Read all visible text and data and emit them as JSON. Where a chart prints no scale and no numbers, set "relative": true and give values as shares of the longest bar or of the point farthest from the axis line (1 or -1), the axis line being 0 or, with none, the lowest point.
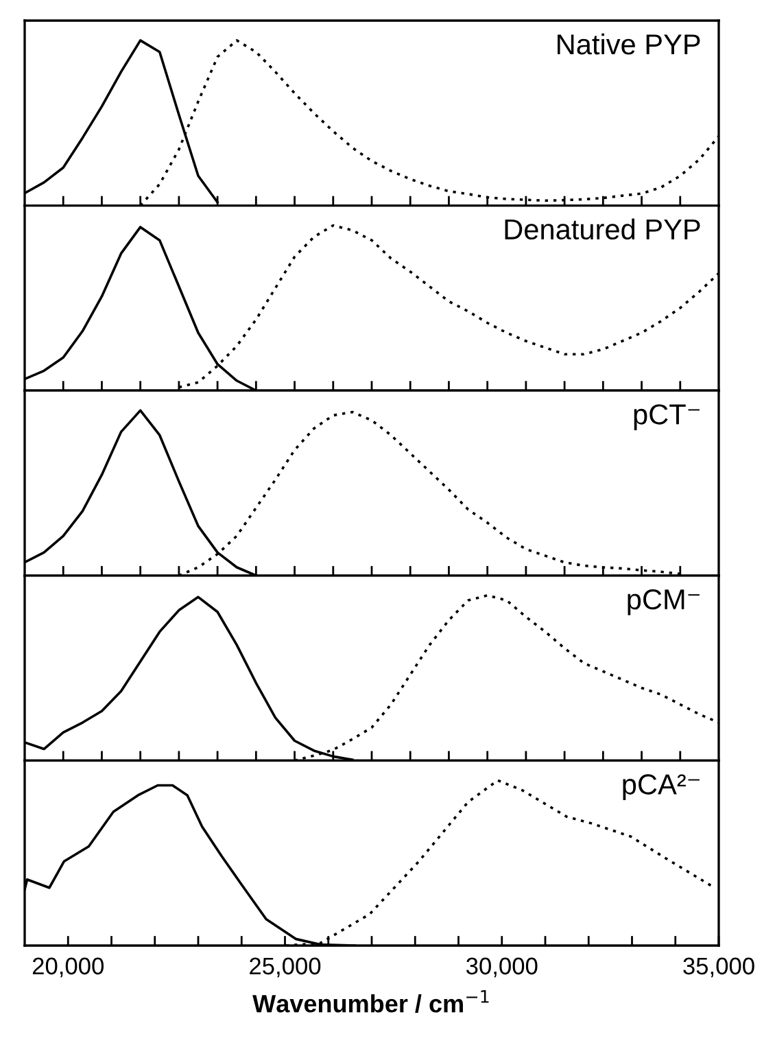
{
  "chart_data": [
    {
      "type": "line",
      "relative": true,
      "categories": [
        null,
        null,
        null,
        null,
        null,
        null,
        null,
        null,
        null,
        null,
        null,
        null,
        null,
        null,
        null,
        null,
        null,
        null,
        null,
        null,
        null,
        null,
        null,
        null,
        null,
        null,
        null,
        null,
        null,
        null,
        null,
        null,
        null,
        null,
        null,
        null,
        null
      ],
      "tick_labels": false,
      "grid": false,
      "annotations": [
        "Native PYP"
      ],
      "series": [
        {
          "color": "#000000",
          "line_style": "solid",
          "values": [
            0.075,
            0.14,
            0.23,
            0.41,
            0.6,
            0.81,
            1.0,
            0.93,
            0.55,
            0.18,
            0.02,
            null,
            null,
            null,
            null,
            null,
            null,
            null,
            null,
            null,
            null,
            null,
            null,
            null,
            null,
            null,
            null,
            null,
            null,
            null,
            null,
            null,
            null,
            null,
            null,
            null,
            null
          ]
        },
        {
          "color": "#000000",
          "line_style": "dotted",
          "values": [
            null,
            null,
            null,
            null,
            null,
            null,
            0,
            0.13,
            0.34,
            0.63,
            0.9,
            1.0,
            0.93,
            0.81,
            0.68,
            0.56,
            0.45,
            0.35,
            0.27,
            0.21,
            0.16,
            0.12,
            0.087,
            0.07,
            0.05,
            0.04,
            0.035,
            0.03,
            0.033,
            0.038,
            0.046,
            0.06,
            0.073,
            0.11,
            0.18,
            0.28,
            0.42
          ]
        }
      ]
    },
    {
      "type": "line",
      "relative": true,
      "categories": [
        null,
        null,
        null,
        null,
        null,
        null,
        null,
        null,
        null,
        null,
        null,
        null,
        null,
        null,
        null,
        null,
        null,
        null,
        null,
        null,
        null,
        null,
        null,
        null,
        null,
        null,
        null,
        null,
        null,
        null,
        null,
        null,
        null,
        null,
        null,
        null,
        null
      ],
      "tick_labels": false,
      "grid": false,
      "annotations": [
        "Denatured PYP"
      ],
      "series": [
        {
          "color": "#000000",
          "line_style": "solid",
          "values": [
            0.07,
            0.12,
            0.2,
            0.36,
            0.57,
            0.83,
            0.99,
            0.91,
            0.63,
            0.35,
            0.16,
            0.06,
            0,
            null,
            null,
            null,
            null,
            null,
            null,
            null,
            null,
            null,
            null,
            null,
            null,
            null,
            null,
            null,
            null,
            null,
            null,
            null,
            null,
            null,
            null,
            null,
            null
          ]
        },
        {
          "color": "#000000",
          "line_style": "dotted",
          "values": [
            null,
            null,
            null,
            null,
            null,
            null,
            null,
            null,
            0.02,
            0.05,
            0.15,
            0.27,
            0.43,
            0.62,
            0.81,
            0.93,
            1.0,
            0.97,
            0.91,
            0.8,
            0.72,
            0.63,
            0.54,
            0.48,
            0.41,
            0.35,
            0.3,
            0.26,
            0.22,
            0.22,
            0.25,
            0.3,
            0.35,
            0.42,
            0.5,
            0.6,
            0.71
          ]
        }
      ]
    },
    {
      "type": "line",
      "relative": true,
      "categories": [
        null,
        null,
        null,
        null,
        null,
        null,
        null,
        null,
        null,
        null,
        null,
        null,
        null,
        null,
        null,
        null,
        null,
        null,
        null,
        null,
        null,
        null,
        null,
        null,
        null,
        null,
        null,
        null,
        null,
        null,
        null,
        null,
        null,
        null,
        null,
        null,
        null
      ],
      "tick_labels": false,
      "grid": false,
      "annotations": [
        "pCT⁻"
      ],
      "series": [
        {
          "color": "#000000",
          "line_style": "solid",
          "values": [
            0.08,
            0.14,
            0.24,
            0.39,
            0.61,
            0.87,
            1.0,
            0.85,
            0.57,
            0.3,
            0.14,
            0.05,
            0,
            null,
            null,
            null,
            null,
            null,
            null,
            null,
            null,
            null,
            null,
            null,
            null,
            null,
            null,
            null,
            null,
            null,
            null,
            null,
            null,
            null,
            null,
            null,
            null
          ]
        },
        {
          "color": "#000000",
          "line_style": "dotted",
          "values": [
            null,
            null,
            null,
            null,
            null,
            null,
            null,
            null,
            0,
            0.05,
            0.13,
            0.24,
            0.41,
            0.58,
            0.76,
            0.89,
            0.97,
            0.99,
            0.94,
            0.85,
            0.74,
            0.63,
            0.52,
            0.4,
            0.32,
            0.23,
            0.16,
            0.12,
            0.08,
            0.06,
            0.05,
            0.043,
            0.032,
            0.023,
            0.01,
            null,
            null
          ]
        }
      ]
    },
    {
      "type": "line",
      "relative": true,
      "categories": [
        null,
        null,
        null,
        null,
        null,
        null,
        null,
        null,
        null,
        null,
        null,
        null,
        null,
        null,
        null,
        null,
        null,
        null,
        null,
        null,
        null,
        null,
        null,
        null,
        null,
        null,
        null,
        null,
        null,
        null,
        null,
        null,
        null,
        null,
        null,
        null,
        null
      ],
      "tick_labels": false,
      "grid": false,
      "annotations": [
        "pCM⁻"
      ],
      "series": [
        {
          "color": "#000000",
          "line_style": "solid",
          "values": [
            0.11,
            0.07,
            0.17,
            0.23,
            0.3,
            0.42,
            0.6,
            0.78,
            0.91,
            0.99,
            0.9,
            0.7,
            0.47,
            0.26,
            0.12,
            0.06,
            0.025,
            0.005,
            null,
            null,
            null,
            null,
            null,
            null,
            null,
            null,
            null,
            null,
            null,
            null,
            null,
            null,
            null,
            null,
            null,
            null,
            null
          ]
        },
        {
          "color": "#000000",
          "line_style": "dotted",
          "values": [
            null,
            null,
            null,
            null,
            null,
            null,
            null,
            null,
            null,
            null,
            null,
            null,
            null,
            null,
            0,
            0.03,
            0.065,
            0.13,
            0.2,
            0.34,
            0.52,
            0.7,
            0.85,
            0.97,
            1.0,
            0.97,
            0.87,
            0.78,
            0.68,
            0.59,
            0.54,
            0.49,
            0.44,
            0.4,
            0.34,
            0.28,
            0.23
          ]
        }
      ]
    },
    {
      "type": "line",
      "relative": true,
      "xlim": [
        19000,
        35000
      ],
      "xticks": [
        {
          "value": 20000,
          "label": "20,000"
        },
        {
          "value": 21000,
          "label": null
        },
        {
          "value": 22000,
          "label": null
        },
        {
          "value": 23000,
          "label": null
        },
        {
          "value": 24000,
          "label": null
        },
        {
          "value": 25000,
          "label": "25,000"
        },
        {
          "value": 26000,
          "label": null
        },
        {
          "value": 27000,
          "label": null
        },
        {
          "value": 28000,
          "label": null
        },
        {
          "value": 29000,
          "label": null
        },
        {
          "value": 30000,
          "label": "30,000"
        },
        {
          "value": 31000,
          "label": null
        },
        {
          "value": 32000,
          "label": null
        },
        {
          "value": 33000,
          "label": null
        },
        {
          "value": 34000,
          "label": null
        },
        {
          "value": 35000,
          "label": "35,000"
        }
      ],
      "tick_labels": "x",
      "grid": false,
      "xlabel": "Wavenumber / cm$^{−1}$",
      "annotations": [
        "pCA²⁻"
      ],
      "series": [
        {
          "color": "#000000",
          "line_style": "solid",
          "x": [
            19000,
            19057,
            19568,
            19909,
            20477,
            21045,
            21613,
            22067,
            22408,
            22749,
            23090,
            23544,
            23998,
            24566,
            25248,
            25816,
            26611
          ],
          "values": [
            0.34,
            0.4,
            0.35,
            0.51,
            0.6,
            0.81,
            0.91,
            0.97,
            0.97,
            0.91,
            0.72,
            0.54,
            0.37,
            0.16,
            0.04,
            0.006,
            0
          ]
        },
        {
          "color": "#000000",
          "line_style": "dotted",
          "x": [
            25021,
            25816,
            26952,
            28088,
            29224,
            29906,
            30474,
            31496,
            32064,
            32973,
            33768,
            34904
          ],
          "values": [
            0,
            0.015,
            0.19,
            0.51,
            0.87,
            1.0,
            0.94,
            0.78,
            0.74,
            0.66,
            0.53,
            0.35
          ]
        }
      ]
    }
  ]
}
